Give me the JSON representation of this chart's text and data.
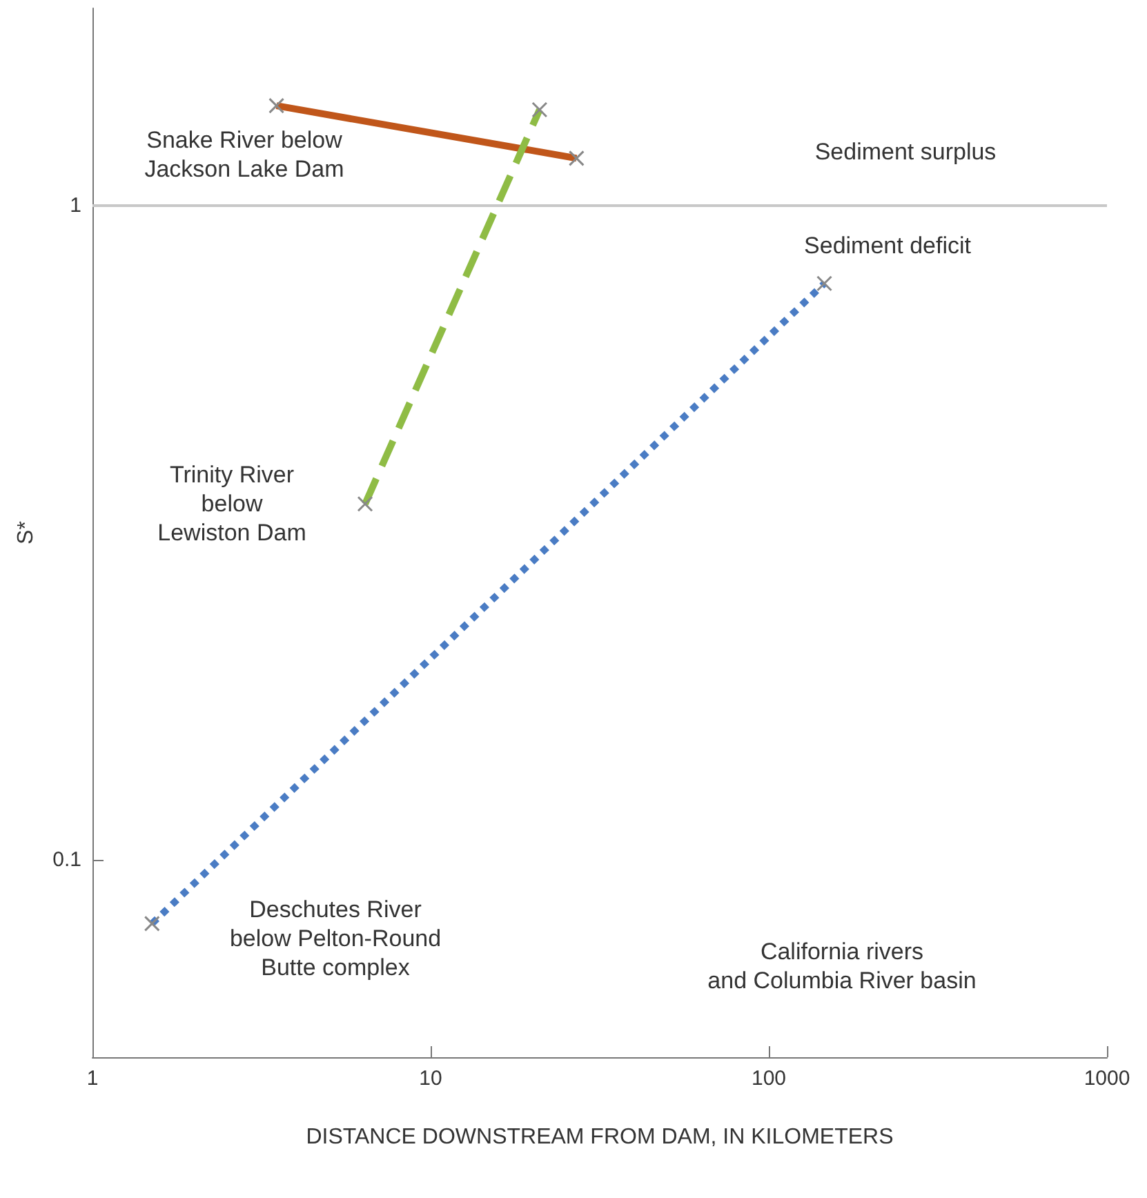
{
  "chart_data": {
    "type": "line",
    "xlabel": "DISTANCE DOWNSTREAM FROM DAM, IN KILOMETERS",
    "ylabel": "S*",
    "log": "xy",
    "xlim": [
      1,
      1000
    ],
    "ylim": [
      0.05,
      2
    ],
    "xticks": [
      1,
      10,
      100,
      1000
    ],
    "yticks": [
      0.1,
      1
    ],
    "grid": false,
    "marker": "cross",
    "series": [
      {
        "color": "#c0561a",
        "x": [
          3.5,
          27
        ],
        "values": [
          1.42,
          1.18
        ],
        "line_style": "solid"
      },
      {
        "color": "#8fbc45",
        "x": [
          6.4,
          21
        ],
        "values": [
          0.35,
          1.4
        ],
        "line_style": "dashed"
      },
      {
        "color": "#4a7cc4",
        "x": [
          1.5,
          146
        ],
        "values": [
          0.08,
          0.76
        ],
        "line_style": "dotted"
      }
    ],
    "ref_lines": [
      {
        "axis": "y",
        "value": 1,
        "color": "#c8c8c8",
        "line_style": "solid"
      }
    ],
    "annotations": [
      "Snake River below\nJackson Lake Dam",
      "Sediment surplus",
      "Sediment deficit",
      "Trinity River\nbelow\nLewiston Dam",
      "Deschutes River\nbelow Pelton-Round\nButte complex",
      "California rivers\nand Columbia River basin"
    ]
  }
}
